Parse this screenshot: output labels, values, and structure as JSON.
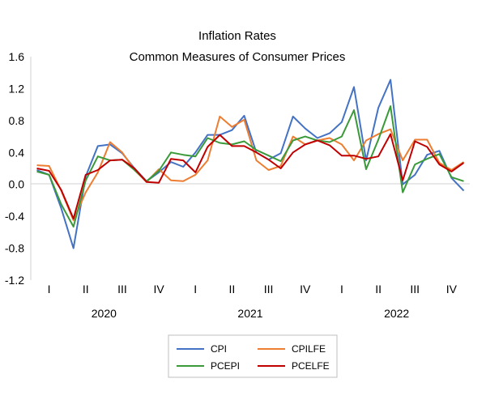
{
  "chart_data": {
    "type": "line",
    "title": "Inflation Rates",
    "subtitle": "Common Measures of Consumer Prices",
    "xlabel": "",
    "ylabel": "",
    "ylim": [
      -1.2,
      1.6
    ],
    "yticks": [
      1.6,
      1.2,
      0.8,
      0.4,
      0.0,
      -0.4,
      -0.8,
      -1.2
    ],
    "ytick_labels": [
      "1.6",
      "1.2",
      "0.8",
      "0.4",
      "0.0",
      "-0.4",
      "-0.8",
      "-1.2"
    ],
    "grid": false,
    "legend_position": "bottom",
    "x": [
      "2020-01",
      "2020-02",
      "2020-03",
      "2020-04",
      "2020-05",
      "2020-06",
      "2020-07",
      "2020-08",
      "2020-09",
      "2020-10",
      "2020-11",
      "2020-12",
      "2021-01",
      "2021-02",
      "2021-03",
      "2021-04",
      "2021-05",
      "2021-06",
      "2021-07",
      "2021-08",
      "2021-09",
      "2021-10",
      "2021-11",
      "2021-12",
      "2022-01",
      "2022-02",
      "2022-03",
      "2022-04",
      "2022-05",
      "2022-06",
      "2022-07",
      "2022-08",
      "2022-09",
      "2022-10",
      "2022-11",
      "2022-12"
    ],
    "quarter_labels": [
      "I",
      "II",
      "III",
      "IV",
      "I",
      "II",
      "III",
      "IV",
      "I",
      "II",
      "III",
      "IV"
    ],
    "year_labels": [
      "2020",
      "2021",
      "2022"
    ],
    "series": [
      {
        "name": "CPI",
        "color": "#4472C4",
        "values": [
          0.18,
          0.12,
          -0.3,
          -0.8,
          0.1,
          0.48,
          0.5,
          0.39,
          0.2,
          0.04,
          0.15,
          0.28,
          0.22,
          0.4,
          0.62,
          0.62,
          0.68,
          0.86,
          0.4,
          0.31,
          0.39,
          0.85,
          0.7,
          0.58,
          0.64,
          0.78,
          1.22,
          0.3,
          0.96,
          1.31,
          0.0,
          0.12,
          0.37,
          0.42,
          0.08,
          -0.08
        ]
      },
      {
        "name": "CPILFE",
        "color": "#ED7D31",
        "values": [
          0.24,
          0.23,
          -0.08,
          -0.45,
          -0.1,
          0.15,
          0.53,
          0.4,
          0.18,
          0.03,
          0.19,
          0.05,
          0.04,
          0.12,
          0.3,
          0.85,
          0.72,
          0.81,
          0.3,
          0.18,
          0.23,
          0.6,
          0.5,
          0.55,
          0.58,
          0.5,
          0.3,
          0.55,
          0.63,
          0.69,
          0.3,
          0.56,
          0.56,
          0.27,
          0.18,
          0.28
        ]
      },
      {
        "name": "PCEPI",
        "color": "#3A9A3A",
        "values": [
          0.16,
          0.12,
          -0.25,
          -0.53,
          0.05,
          0.35,
          0.3,
          0.31,
          0.18,
          0.04,
          0.17,
          0.4,
          0.37,
          0.35,
          0.58,
          0.52,
          0.5,
          0.54,
          0.43,
          0.36,
          0.29,
          0.55,
          0.6,
          0.55,
          0.53,
          0.6,
          0.93,
          0.19,
          0.56,
          0.98,
          -0.1,
          0.25,
          0.32,
          0.38,
          0.09,
          0.04
        ]
      },
      {
        "name": "PCELFE",
        "color": "#C00000",
        "values": [
          0.2,
          0.17,
          -0.07,
          -0.43,
          0.12,
          0.18,
          0.3,
          0.31,
          0.2,
          0.03,
          0.02,
          0.32,
          0.3,
          0.15,
          0.47,
          0.62,
          0.48,
          0.48,
          0.4,
          0.31,
          0.2,
          0.4,
          0.5,
          0.55,
          0.49,
          0.36,
          0.36,
          0.32,
          0.35,
          0.63,
          0.05,
          0.54,
          0.47,
          0.25,
          0.16,
          0.27
        ]
      }
    ]
  }
}
